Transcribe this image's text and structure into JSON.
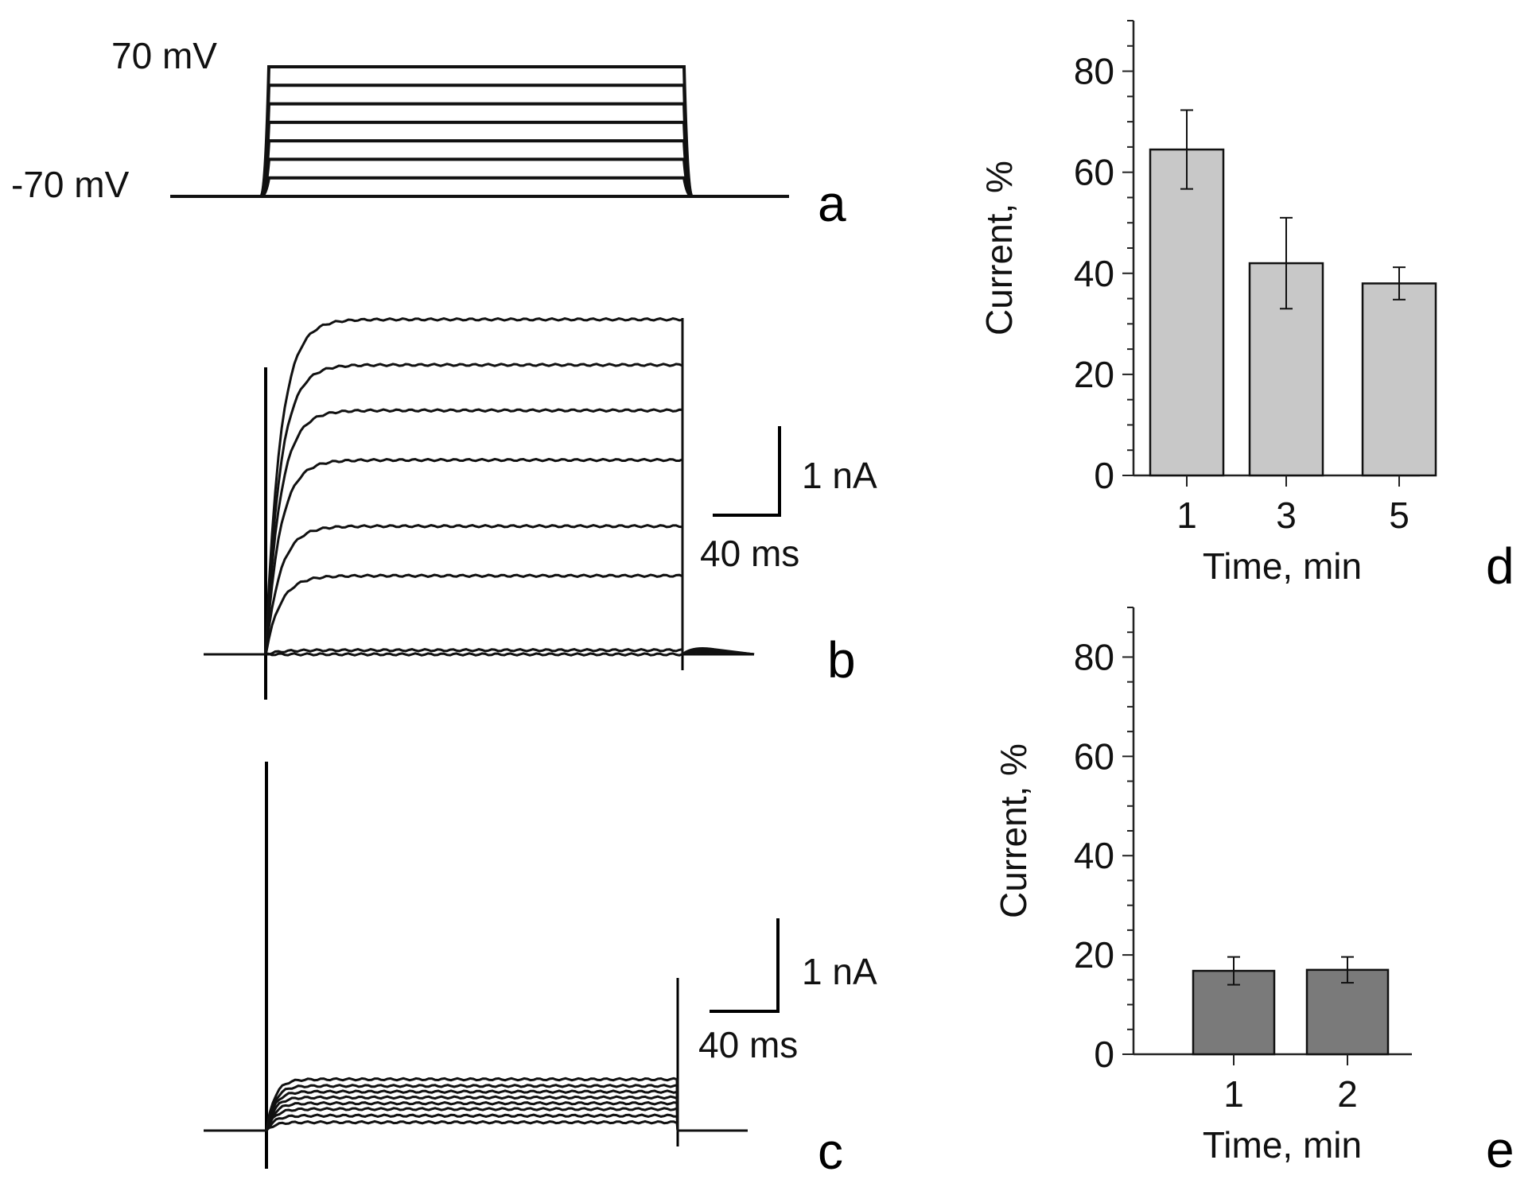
{
  "chart_data": [
    {
      "panel": "a",
      "type": "line",
      "description_kind": "voltage step protocol",
      "holding_label": "-70 mV",
      "top_label": "70 mV",
      "steps_mV": [
        -70,
        -50,
        -30,
        -10,
        10,
        30,
        50,
        70
      ],
      "panel_letter": "a"
    },
    {
      "panel": "b",
      "type": "line",
      "description_kind": "current traces",
      "steady_state_nA": [
        0.0,
        0.05,
        0.95,
        1.55,
        2.35,
        2.95,
        3.5,
        4.05
      ],
      "scale_current_label": "1 nA",
      "scale_time_label": "40 ms",
      "panel_letter": "b"
    },
    {
      "panel": "c",
      "type": "line",
      "description_kind": "current traces",
      "steady_state_nA": [
        0.1,
        0.18,
        0.26,
        0.33,
        0.4,
        0.47,
        0.54,
        0.62
      ],
      "scale_current_label": "1 nA",
      "scale_time_label": "40 ms",
      "panel_letter": "c"
    },
    {
      "panel": "d",
      "type": "bar",
      "categories": [
        "1",
        "3",
        "5"
      ],
      "values": [
        64.5,
        42,
        38
      ],
      "errors": [
        7.8,
        9,
        3.2
      ],
      "xlabel": "Time, min",
      "ylabel": "Current, %",
      "ylim": [
        0,
        90
      ],
      "yticks": [
        "0",
        "20",
        "40",
        "60",
        "80"
      ],
      "bar_color": "#c8c8c8",
      "panel_letter": "d"
    },
    {
      "panel": "e",
      "type": "bar",
      "categories": [
        "1",
        "2"
      ],
      "values": [
        16.8,
        17
      ],
      "errors": [
        2.8,
        2.6
      ],
      "xlabel": "Time, min",
      "ylabel": "Current, %",
      "ylim": [
        0,
        90
      ],
      "yticks": [
        "0",
        "20",
        "40",
        "60",
        "80"
      ],
      "bar_color": "#7a7a7a",
      "panel_letter": "e"
    }
  ]
}
